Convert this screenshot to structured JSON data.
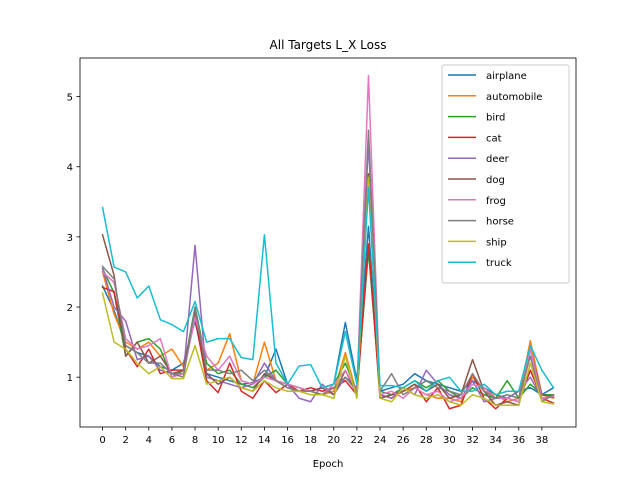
{
  "chart_data": {
    "type": "line",
    "title": "All Targets L_X Loss",
    "xlabel": "Epoch",
    "ylabel": "",
    "xlim": [
      -1.95,
      40.95
    ],
    "ylim": [
      0.29,
      5.55
    ],
    "xticks": [
      0,
      2,
      4,
      6,
      8,
      10,
      12,
      14,
      16,
      18,
      20,
      22,
      24,
      26,
      28,
      30,
      32,
      34,
      36,
      38
    ],
    "yticks": [
      1,
      2,
      3,
      4,
      5
    ],
    "grid": false,
    "legend_position": "upper right",
    "x": [
      0,
      1,
      2,
      3,
      4,
      5,
      6,
      7,
      8,
      9,
      10,
      11,
      12,
      13,
      14,
      15,
      16,
      17,
      18,
      19,
      20,
      21,
      22,
      23,
      24,
      25,
      26,
      27,
      28,
      29,
      30,
      31,
      32,
      33,
      34,
      35,
      36,
      37,
      38,
      39
    ],
    "series": [
      {
        "name": "airplane",
        "color": "#1f77b4",
        "values": [
          2.3,
          1.95,
          1.45,
          1.35,
          1.3,
          1.15,
          1.1,
          1.2,
          1.8,
          1.05,
          1.0,
          0.95,
          0.9,
          0.92,
          1.0,
          1.4,
          0.9,
          0.85,
          0.8,
          0.85,
          0.9,
          1.78,
          0.95,
          3.15,
          0.8,
          0.85,
          0.9,
          1.05,
          0.95,
          0.9,
          0.85,
          0.8,
          0.95,
          0.85,
          0.75,
          0.7,
          0.8,
          0.85,
          0.75,
          0.85
        ]
      },
      {
        "name": "automobile",
        "color": "#ff7f0e",
        "values": [
          2.5,
          1.9,
          1.5,
          1.4,
          1.5,
          1.3,
          1.4,
          1.15,
          1.9,
          1.1,
          1.2,
          1.62,
          0.95,
          0.9,
          1.5,
          0.95,
          0.9,
          0.85,
          0.8,
          0.75,
          0.8,
          1.35,
          0.75,
          2.9,
          0.75,
          0.7,
          0.8,
          0.85,
          0.75,
          0.7,
          0.7,
          0.65,
          1.0,
          0.8,
          0.75,
          0.65,
          0.7,
          1.52,
          0.75,
          0.7
        ]
      },
      {
        "name": "bird",
        "color": "#2ca02c",
        "values": [
          2.55,
          2.2,
          1.3,
          1.5,
          1.55,
          1.4,
          1.0,
          1.1,
          2.0,
          1.2,
          1.05,
          1.1,
          0.9,
          0.85,
          1.0,
          1.1,
          0.9,
          0.85,
          0.8,
          0.85,
          0.9,
          1.2,
          0.8,
          2.8,
          0.8,
          0.75,
          0.85,
          0.95,
          0.85,
          0.95,
          0.8,
          0.7,
          0.85,
          0.75,
          0.7,
          0.95,
          0.7,
          0.9,
          0.75,
          0.75
        ]
      },
      {
        "name": "cat",
        "color": "#d62728",
        "values": [
          2.28,
          2.22,
          1.4,
          1.15,
          1.4,
          1.05,
          1.1,
          1.1,
          1.85,
          0.95,
          0.78,
          1.2,
          0.8,
          0.7,
          0.95,
          0.78,
          0.9,
          0.8,
          0.85,
          0.8,
          0.85,
          0.95,
          0.75,
          2.9,
          0.7,
          0.75,
          0.8,
          0.9,
          0.65,
          0.85,
          0.55,
          0.6,
          1.05,
          0.7,
          0.55,
          0.7,
          0.65,
          1.1,
          0.7,
          0.63
        ]
      },
      {
        "name": "deer",
        "color": "#9467bd",
        "values": [
          2.55,
          2.0,
          1.8,
          1.25,
          1.3,
          1.1,
          1.05,
          1.05,
          2.88,
          1.0,
          0.95,
          0.9,
          0.85,
          0.9,
          1.2,
          0.95,
          0.9,
          0.7,
          0.65,
          0.9,
          0.75,
          1.0,
          0.85,
          4.35,
          0.75,
          0.7,
          0.85,
          0.75,
          1.1,
          0.9,
          0.75,
          0.7,
          0.95,
          0.65,
          0.7,
          0.7,
          0.8,
          1.0,
          0.7,
          0.72
        ]
      },
      {
        "name": "dog",
        "color": "#8c564b",
        "values": [
          3.03,
          2.45,
          1.3,
          1.5,
          1.2,
          1.3,
          1.05,
          1.1,
          1.95,
          1.05,
          0.9,
          1.0,
          0.85,
          0.8,
          1.05,
          0.95,
          0.85,
          0.8,
          0.8,
          0.85,
          0.75,
          1.1,
          0.75,
          3.9,
          0.7,
          0.75,
          0.8,
          0.9,
          0.8,
          0.9,
          0.7,
          0.75,
          1.25,
          0.8,
          0.6,
          0.65,
          0.6,
          1.4,
          0.75,
          0.72
        ]
      },
      {
        "name": "frog",
        "color": "#e377c2",
        "values": [
          2.5,
          2.35,
          1.55,
          1.4,
          1.45,
          1.55,
          1.0,
          1.05,
          1.85,
          1.3,
          1.1,
          1.3,
          0.95,
          0.9,
          1.0,
          0.95,
          0.9,
          0.85,
          0.8,
          0.75,
          0.9,
          1.1,
          0.8,
          5.3,
          0.75,
          0.8,
          0.7,
          0.85,
          0.75,
          0.8,
          0.65,
          0.7,
          0.9,
          0.85,
          0.7,
          0.7,
          0.65,
          1.4,
          0.7,
          0.73
        ]
      },
      {
        "name": "horse",
        "color": "#7f7f7f",
        "values": [
          2.58,
          2.4,
          1.45,
          1.35,
          1.2,
          1.2,
          1.05,
          1.0,
          2.0,
          1.1,
          1.1,
          1.05,
          1.1,
          0.95,
          1.1,
          0.95,
          0.85,
          0.8,
          0.8,
          0.75,
          0.85,
          1.0,
          0.8,
          4.52,
          0.8,
          1.05,
          0.75,
          0.85,
          0.95,
          0.85,
          0.8,
          0.75,
          1.05,
          0.8,
          0.7,
          0.75,
          0.7,
          1.3,
          0.65,
          0.75
        ]
      },
      {
        "name": "ship",
        "color": "#bcbd22",
        "values": [
          2.2,
          1.5,
          1.4,
          1.2,
          1.05,
          1.15,
          0.98,
          0.98,
          1.45,
          0.9,
          0.95,
          1.0,
          0.85,
          0.8,
          0.95,
          0.85,
          0.8,
          0.8,
          0.75,
          0.75,
          0.7,
          1.3,
          0.7,
          3.85,
          0.7,
          0.65,
          0.85,
          0.75,
          0.7,
          0.75,
          0.65,
          0.6,
          0.75,
          0.7,
          0.6,
          0.6,
          0.6,
          1.2,
          0.65,
          0.62
        ]
      },
      {
        "name": "truck",
        "color": "#17becf",
        "values": [
          3.42,
          2.57,
          2.5,
          2.13,
          2.3,
          1.82,
          1.75,
          1.65,
          2.08,
          1.5,
          1.55,
          1.55,
          1.28,
          1.25,
          3.03,
          1.2,
          0.9,
          1.16,
          1.18,
          0.85,
          0.9,
          1.65,
          0.9,
          3.7,
          0.88,
          0.88,
          0.85,
          0.95,
          0.8,
          0.95,
          1.0,
          0.8,
          0.8,
          0.9,
          0.75,
          0.8,
          0.8,
          1.45,
          1.1,
          0.85
        ]
      }
    ]
  }
}
